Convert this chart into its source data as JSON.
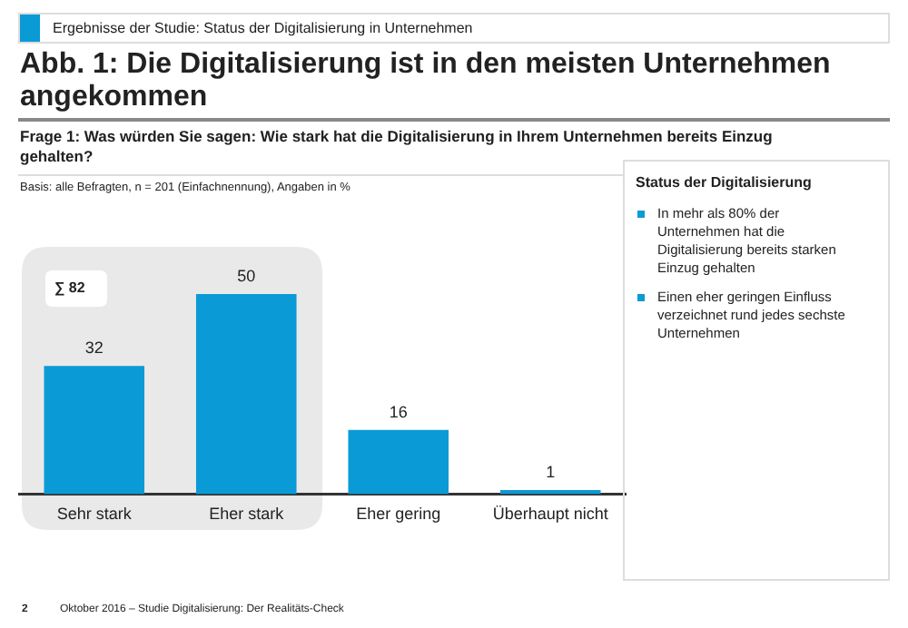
{
  "chart_data": {
    "type": "bar",
    "title": "Abb. 1: Die Digitalisierung ist in den meisten Unternehmen angekommen",
    "subtitle": "Frage 1: Was würden Sie sagen: Wie stark hat die Digitalisierung in Ihrem Unternehmen bereits Einzug gehalten?",
    "categories": [
      "Sehr stark",
      "Eher stark",
      "Eher gering",
      "Überhaupt nicht"
    ],
    "values": [
      32,
      50,
      16,
      1
    ],
    "color": "#0a9ad6",
    "data_labels": true,
    "grid": false,
    "legend": false,
    "bands": [
      {
        "axis": "x",
        "from": "Sehr stark",
        "to": "Eher stark",
        "label": "∑ 82",
        "color": "#e9e9e9"
      }
    ],
    "annotations": [
      "Ergebnisse der Studie: Status der Digitalisierung in Unternehmen",
      "Basis: alle Befragten, n = 201 (Einfachnennung), Angaben in %",
      "Status der Digitalisierung",
      "In mehr als 80% der Unternehmen hat die Digitalisierung bereits starken Einzug gehalten",
      "Einen eher geringen Einfluss verzeichnet rund jedes sechste Unternehmen",
      "2",
      "Oktober 2016 – Studie Digitalisierung: Der Realitäts-Check"
    ]
  }
}
